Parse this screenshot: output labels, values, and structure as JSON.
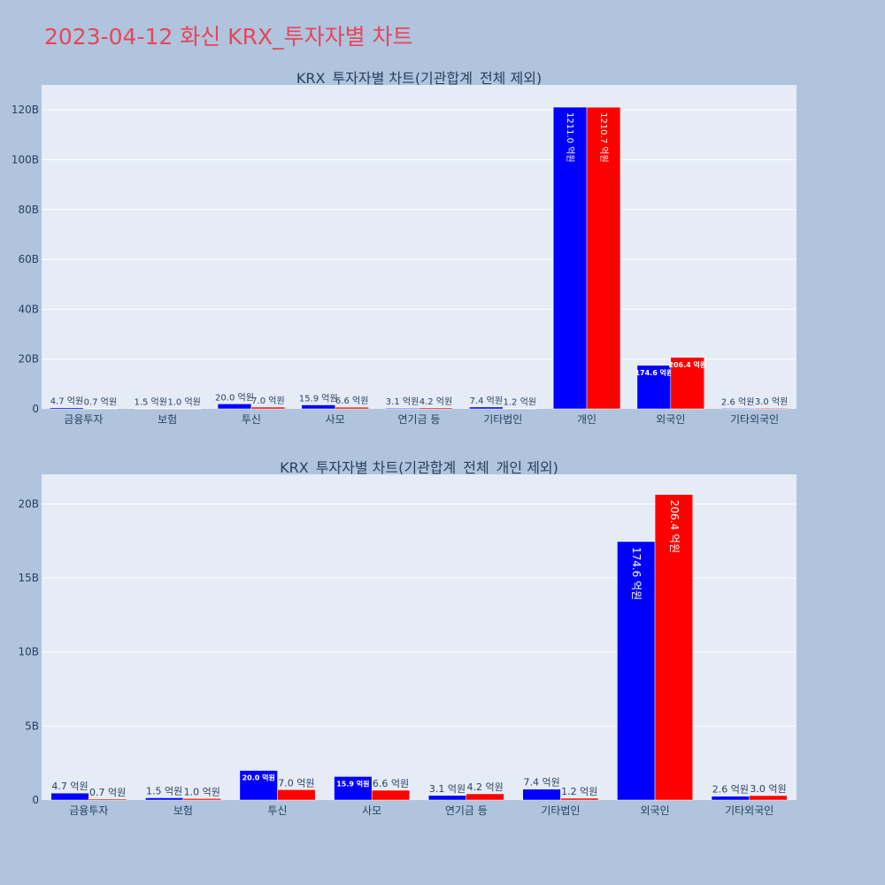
{
  "title": "2023-04-12 화신 KRX_투자자별 차트",
  "colors": {
    "background": "#b0c4de",
    "plot_background": "#e5ecf6",
    "title": "#e8455a",
    "text": "#2a3f5f"
  },
  "chart_data": [
    {
      "type": "bar",
      "title": "KRX_투자자별 차트(기관합계_전체 제외)",
      "categories": [
        "금융투자",
        "보험",
        "투신",
        "사모",
        "연기금 등",
        "기타법인",
        "개인",
        "외국인",
        "기타외국인"
      ],
      "ylim": [
        0,
        130
      ],
      "yticks": [
        0,
        20,
        40,
        60,
        80,
        100,
        120
      ],
      "ytick_labels": [
        "0",
        "20B",
        "40B",
        "60B",
        "80B",
        "100B",
        "120B"
      ],
      "grid": true,
      "series": [
        {
          "color": "#0000ff",
          "values": [
            0.47,
            0.15,
            2.0,
            1.59,
            0.31,
            0.74,
            121.1,
            17.46,
            0.26
          ],
          "labels": [
            "4.7 억원",
            "1.5 억원",
            "20.0 억원",
            "15.9 억원",
            "3.1 억원",
            "7.4 억원",
            "1211.0 억원",
            "174.6 억원",
            "2.6 억원"
          ]
        },
        {
          "color": "#ff0000",
          "values": [
            0.07,
            0.1,
            0.7,
            0.66,
            0.42,
            0.12,
            121.07,
            20.64,
            0.3
          ],
          "labels": [
            "0.7 억원",
            "1.0 억원",
            "7.0 억원",
            "6.6 억원",
            "4.2 억원",
            "1.2 억원",
            "1210.7 억원",
            "206.4 억원",
            "3.0 억원"
          ]
        }
      ]
    },
    {
      "type": "bar",
      "title": "KRX_투자자별 차트(기관합계_전체_개인 제외)",
      "categories": [
        "금융투자",
        "보험",
        "투신",
        "사모",
        "연기금 등",
        "기타법인",
        "외국인",
        "기타외국인"
      ],
      "ylim": [
        0,
        22
      ],
      "yticks": [
        0,
        5,
        10,
        15,
        20
      ],
      "ytick_labels": [
        "0",
        "5B",
        "10B",
        "15B",
        "20B"
      ],
      "grid": true,
      "series": [
        {
          "color": "#0000ff",
          "values": [
            0.47,
            0.15,
            2.0,
            1.59,
            0.31,
            0.74,
            17.46,
            0.26
          ],
          "labels": [
            "4.7 억원",
            "1.5 억원",
            "20.0 억원",
            "15.9 억원",
            "3.1 억원",
            "7.4 억원",
            "174.6 억원",
            "2.6 억원"
          ]
        },
        {
          "color": "#ff0000",
          "values": [
            0.07,
            0.1,
            0.7,
            0.66,
            0.42,
            0.12,
            20.64,
            0.3
          ],
          "labels": [
            "0.7 억원",
            "1.0 억원",
            "7.0 억원",
            "6.6 억원",
            "4.2 억원",
            "1.2 억원",
            "206.4 억원",
            "3.0 억원"
          ]
        }
      ]
    }
  ]
}
